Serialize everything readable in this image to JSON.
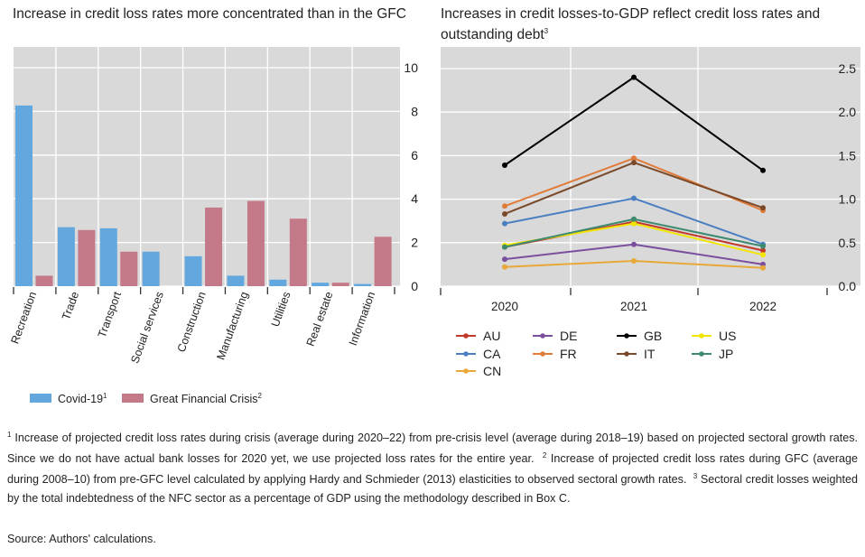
{
  "chart_data": [
    {
      "type": "bar",
      "title": "Increase in credit loss rates more concentrated than in the GFC",
      "categories": [
        "Recreation",
        "Trade",
        "Transport",
        "Social services",
        "Construction",
        "Manufacturing",
        "Utilities",
        "Real estate",
        "Information"
      ],
      "series": [
        {
          "name": "Covid-19",
          "sup": "1",
          "color": "#62a8df",
          "values": [
            8.27,
            2.7,
            2.65,
            1.58,
            1.37,
            0.48,
            0.3,
            0.16,
            0.1
          ]
        },
        {
          "name": "Great Financial Crisis",
          "sup": "2",
          "color": "#c47989",
          "values": [
            0.48,
            2.57,
            1.58,
            null,
            3.6,
            3.9,
            3.09,
            0.16,
            2.26
          ]
        }
      ],
      "ylim": [
        0,
        10
      ],
      "yticks": [
        "0",
        "2",
        "4",
        "6",
        "8",
        "10"
      ],
      "y_axis_side": "right",
      "grid": true,
      "legend": "bottom"
    },
    {
      "type": "line",
      "title": "Increases in credit losses-to-GDP reflect credit loss rates and outstanding debt",
      "title_sup": "3",
      "categories": [
        "2020",
        "2021",
        "2022"
      ],
      "series": [
        {
          "name": "AU",
          "color": "#c0392b",
          "values": [
            0.45,
            0.74,
            0.41
          ]
        },
        {
          "name": "DE",
          "color": "#7b4f9e",
          "values": [
            0.31,
            0.48,
            0.25
          ]
        },
        {
          "name": "GB",
          "color": "#000000",
          "values": [
            1.39,
            2.4,
            1.33
          ]
        },
        {
          "name": "US",
          "color": "#f2e600",
          "values": [
            0.47,
            0.72,
            0.36
          ]
        },
        {
          "name": "CA",
          "color": "#4a7fc1",
          "values": [
            0.72,
            1.01,
            0.48
          ]
        },
        {
          "name": "FR",
          "color": "#e07b39",
          "values": [
            0.92,
            1.47,
            0.87
          ]
        },
        {
          "name": "IT",
          "color": "#7a4a2a",
          "values": [
            0.83,
            1.42,
            0.9
          ]
        },
        {
          "name": "JP",
          "color": "#3d8a6e",
          "values": [
            0.45,
            0.77,
            0.46
          ]
        },
        {
          "name": "CN",
          "color": "#e8a838",
          "values": [
            0.22,
            0.29,
            0.21
          ]
        }
      ],
      "ylim": [
        0,
        2.5
      ],
      "yticks": [
        "0.0",
        "0.5",
        "1.0",
        "1.5",
        "2.0",
        "2.5"
      ],
      "y_axis_side": "right",
      "grid": true,
      "legend": "bottom"
    }
  ],
  "footnotes": {
    "n1": "Increase of projected credit loss rates during crisis (average during 2020–22) from pre-crisis level (average during 2018–19) based on projected sectoral growth rates. Since we do not have actual bank losses for 2020 yet, we use projected loss rates for the entire year.",
    "n2": "Increase of projected credit loss rates during GFC (average during 2008–10) from pre-GFC level calculated by applying Hardy and Schmieder (2013) elasticities to observed sectoral growth rates.",
    "n3": "Sectoral credit losses weighted by the total indebtedness of the NFC sector as a percentage of GDP using the methodology described in Box C.",
    "s1": "1",
    "s2": "2",
    "s3": "3"
  },
  "source": "Source: Authors' calculations."
}
